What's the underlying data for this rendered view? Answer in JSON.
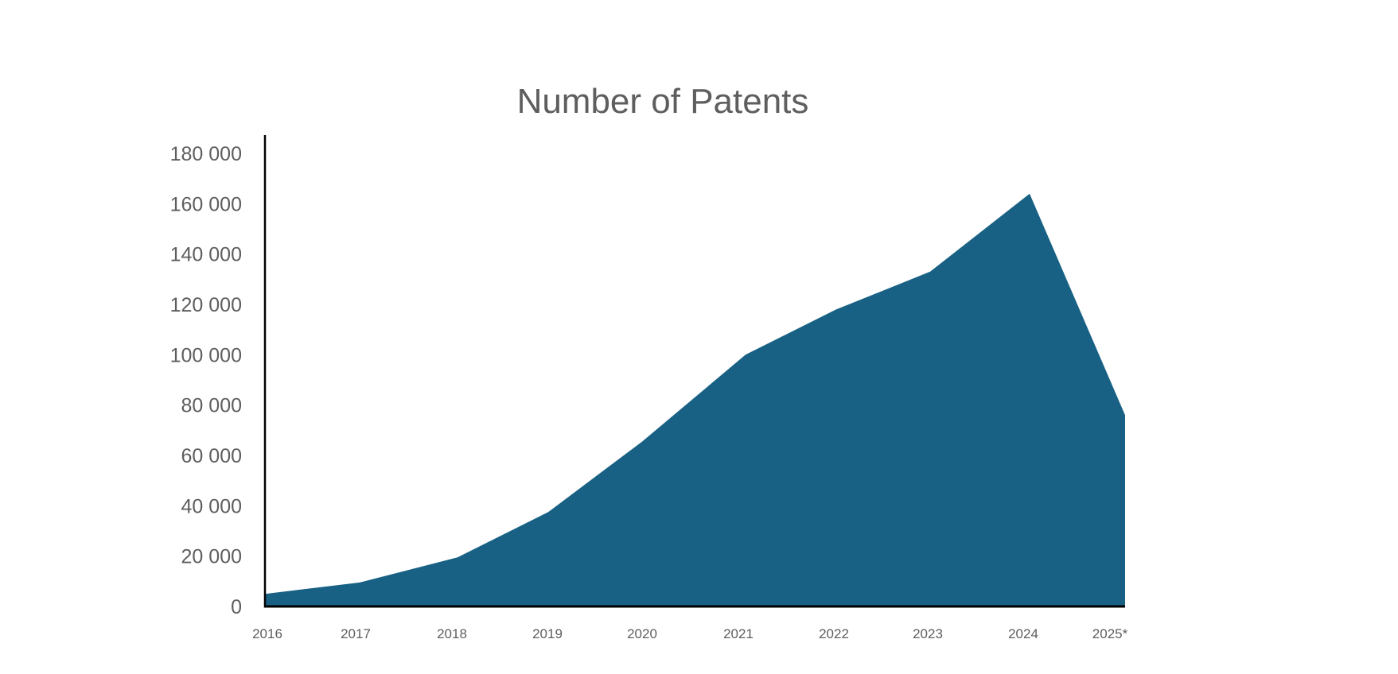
{
  "chart_data": {
    "type": "area",
    "title": "Number of Patents",
    "xlabel": "",
    "ylabel": "",
    "categories": [
      "2016",
      "2017",
      "2018",
      "2019",
      "2020",
      "2021",
      "2022",
      "2023",
      "2024",
      "2025*"
    ],
    "values": [
      5000,
      9500,
      19500,
      37500,
      65500,
      100000,
      118000,
      133000,
      164000,
      76000
    ],
    "ylim": [
      0,
      180000
    ],
    "yticks": [
      0,
      20000,
      40000,
      60000,
      80000,
      100000,
      120000,
      140000,
      160000,
      180000
    ],
    "ytick_labels": [
      "0",
      "20 000",
      "40 000",
      "60 000",
      "80 000",
      "100 000",
      "120 000",
      "140 000",
      "160 000",
      "180 000"
    ],
    "grid": false,
    "legend": "none",
    "fill_color": "#186184",
    "axis_color": "#000000",
    "text_color": "#5e5e5e"
  }
}
